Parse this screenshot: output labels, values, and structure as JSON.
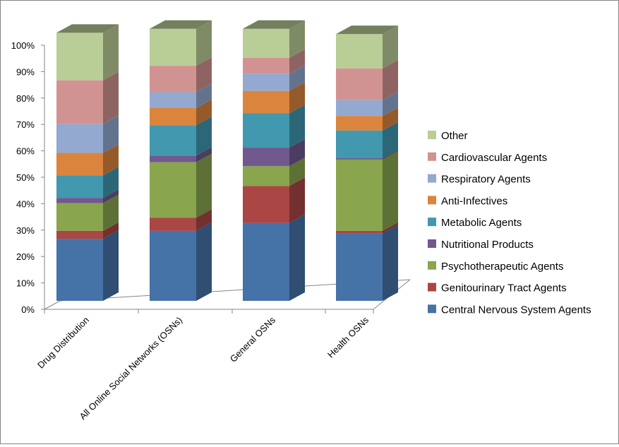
{
  "chart_data": {
    "type": "bar",
    "stacked": true,
    "percent_stacked": true,
    "style": "3d-column",
    "title": "",
    "xlabel": "",
    "ylabel": "",
    "ylim": [
      0,
      100
    ],
    "y_ticks": [
      "0%",
      "10%",
      "20%",
      "30%",
      "40%",
      "50%",
      "60%",
      "70%",
      "80%",
      "90%",
      "100%"
    ],
    "grid": false,
    "legend_position": "right",
    "categories": [
      "Drug Distribution",
      "All Online Social Networks (OSNs)",
      "General OSNs",
      "Health OSNs"
    ],
    "series": [
      {
        "name": "Central Nervous System Agents",
        "color": "#4572A7",
        "values": [
          23.5,
          26.5,
          29.5,
          25.5
        ]
      },
      {
        "name": "Genitourinary Tract Agents",
        "color": "#AA4643",
        "values": [
          3,
          5,
          14,
          1
        ]
      },
      {
        "name": "Psychotherapeutic Agents",
        "color": "#89A54E",
        "values": [
          10.5,
          21,
          7.5,
          27
        ]
      },
      {
        "name": "Nutritional Products",
        "color": "#71588F",
        "values": [
          2,
          2.5,
          7,
          0.5
        ]
      },
      {
        "name": "Metabolic Agents",
        "color": "#4198AF",
        "values": [
          8.5,
          11.5,
          13,
          10.5
        ]
      },
      {
        "name": "Anti-Infectives",
        "color": "#DB843D",
        "values": [
          8.5,
          6.5,
          8.5,
          5.5
        ]
      },
      {
        "name": "Respiratory Agents",
        "color": "#93A9CF",
        "values": [
          11,
          6,
          6.5,
          6
        ]
      },
      {
        "name": "Cardiovascular Agents",
        "color": "#D19392",
        "values": [
          16.5,
          10,
          6,
          12
        ]
      },
      {
        "name": "Other",
        "color": "#B9CD96",
        "values": [
          18,
          14,
          11,
          13
        ]
      }
    ]
  }
}
